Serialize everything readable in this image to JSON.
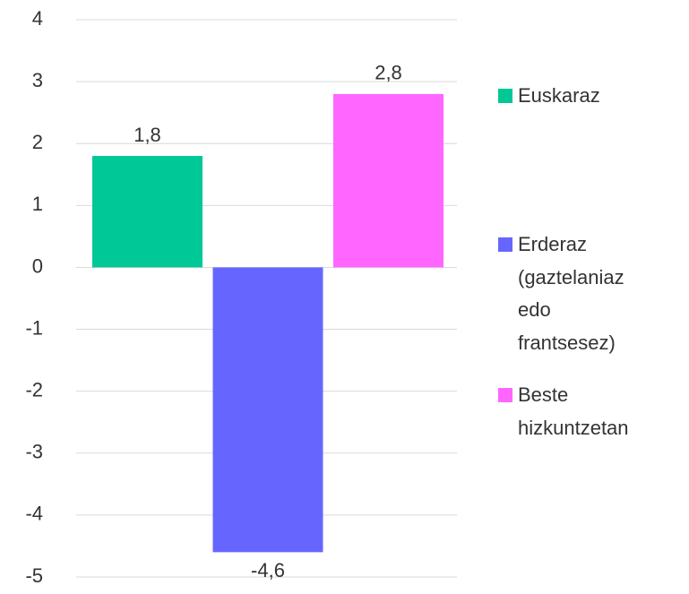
{
  "chart_data": {
    "type": "bar",
    "categories": [
      null
    ],
    "series": [
      {
        "name": "Euskaraz",
        "color": "#00c896",
        "values": [
          1.8
        ],
        "value_labels": [
          "1,8"
        ]
      },
      {
        "name": "Erderaz (gaztelaniaz edo frantsesez)",
        "color": "#6666ff",
        "values": [
          -4.6
        ],
        "value_labels": [
          "-4,6"
        ]
      },
      {
        "name": "Beste hizkuntzetan",
        "color": "#ff66ff",
        "values": [
          2.8
        ],
        "value_labels": [
          "2,8"
        ]
      }
    ],
    "ylim": [
      -5,
      4
    ],
    "yticks": [
      -5,
      -4,
      -3,
      -2,
      -1,
      0,
      1,
      2,
      3,
      4
    ],
    "grid": true,
    "legend": "right"
  }
}
